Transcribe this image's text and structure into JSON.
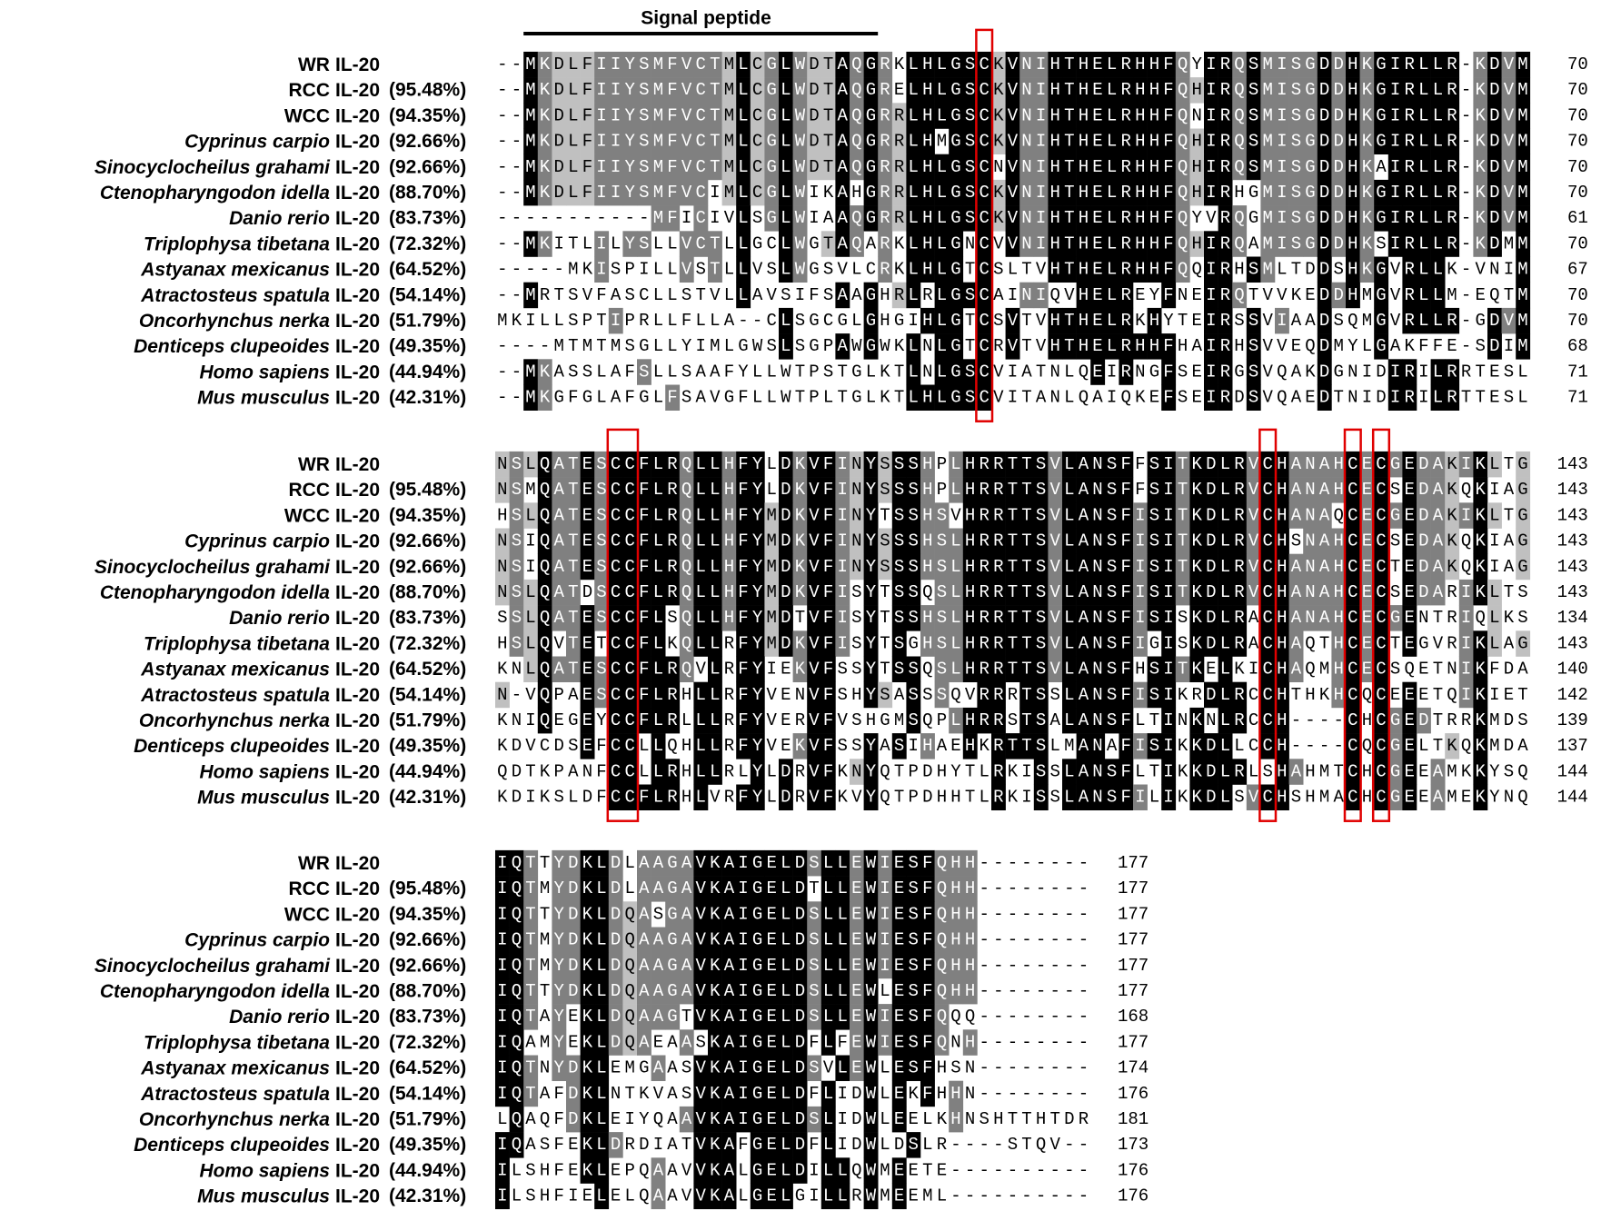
{
  "header": {
    "signal_label": "Signal peptide"
  },
  "shading": {
    "identical": "#000000",
    "high": "#808080",
    "medium": "#c0c0c0"
  },
  "sequences": [
    {
      "name": "WR",
      "italic": false,
      "gene": "IL-20"
    },
    {
      "name": "RCC",
      "italic": false,
      "gene": "IL-20",
      "identity": "(95.48%)"
    },
    {
      "name": "WCC",
      "italic": false,
      "gene": "IL-20",
      "identity": "(94.35%)"
    },
    {
      "name": "Cyprinus carpio",
      "italic": true,
      "gene": "IL-20",
      "identity": "(92.66%)"
    },
    {
      "name": "Sinocyclocheilus grahami",
      "italic": true,
      "gene": "IL-20",
      "identity": "(92.66%)"
    },
    {
      "name": "Ctenopharyngodon idella",
      "italic": true,
      "gene": "IL-20",
      "identity": "(88.70%)"
    },
    {
      "name": "Danio rerio",
      "italic": true,
      "gene": "IL-20",
      "identity": "(83.73%)"
    },
    {
      "name": "Triplophysa tibetana",
      "italic": true,
      "gene": "IL-20",
      "identity": "(72.32%)"
    },
    {
      "name": "Astyanax mexicanus",
      "italic": true,
      "gene": "IL-20",
      "identity": "(64.52%)"
    },
    {
      "name": "Atractosteus spatula",
      "italic": true,
      "gene": "IL-20",
      "identity": "(54.14%)"
    },
    {
      "name": "Oncorhynchus nerka",
      "italic": true,
      "gene": "IL-20",
      "identity": "(51.79%)"
    },
    {
      "name": "Denticeps clupeoides",
      "italic": true,
      "gene": "IL-20",
      "identity": "(49.35%)"
    },
    {
      "name": "Homo sapiens",
      "italic": true,
      "gene": "IL-20",
      "identity": "(44.94%)"
    },
    {
      "name": "Mus musculus",
      "italic": true,
      "gene": "IL-20",
      "identity": "(42.31%)"
    }
  ],
  "blocks": [
    {
      "rows": [
        {
          "seq": "--MKDLFIIYSMFVCTMLCGLWDTAQGRKLHLGSCKVNIHTHELRHHFQYIRQSMISGDDHKGIRLLR-KDVM",
          "end": 70
        },
        {
          "seq": "--MKDLFIIYSMFVCTMLCGLWDTAQGRELHLGSCKVNIHTHELRHHFQHIRQSMISGDDHKGIRLLR-KDVM",
          "end": 70
        },
        {
          "seq": "--MKDLFIIYSMFVCTMLCGLWDTAQGRRLHLGSCKVNIHTHELRHHFQNIRQSMISGDDHKGIRLLR-KDVM",
          "end": 70
        },
        {
          "seq": "--MKDLFIIYSMFVCTMLCGLWDTAQGRRLHMGSCKVNIHTHELRHHFQHIRQSMISGDDHKGIRLLR-KDVM",
          "end": 70
        },
        {
          "seq": "--MKDLFIIYSMFVCTMLCGLWDTAQGRRLHLGSCNVNIHTHELRHHFQHIRQSMISGDDHKAIRLLR-KDVM",
          "end": 70
        },
        {
          "seq": "--MKDLFIIYSMFVCIMLCGLWIKAHGRRLHLGSCKVNIHTHELRHHFQHIRHGMISGDDHKGIRLLR-KDVM",
          "end": 70
        },
        {
          "seq": "-----------MFICIVLSGLWIAAQGRRLHLGSCKVNIHTHELRHHFQYVRQGMISGDDHKGIRLLR-KDVM",
          "end": 61
        },
        {
          "seq": "--MKITLILYSLLVCTLLGCLWGTAQARKLHLGNCVVNIHTHELRHHFQHIRQAMISGDDHKSIRLLR-KDMM",
          "end": 70
        },
        {
          "seq": "-----MKISPILLVSTLLVSLWGSVLCRKLHLGTCSLTVHTHELRHHFQQIRHSMLTDDSHKGVRLLK-VNIM",
          "end": 67
        },
        {
          "seq": "--MRTSVFASCLLSTVLLAVSIFSAAGHRLRLGSCAINIQVHELREYFNEIRQTVVKEDDHMGVRLLM-EQTM",
          "end": 70
        },
        {
          "seq": "MKILLSPTIPRLLFLLA--CLSGCGLGHGIHLGTCSVTVHTHELRKHYTEIRSSVIAADSQMGVRLLR-GDVM",
          "end": 70
        },
        {
          "seq": "----MTMTMSGLLYIMLGWSLSGPAWGWKLNLGTCRVTVHTHELRHHFHAIRHSVVEQDMYLGAKFFE-SDIM",
          "end": 68
        },
        {
          "seq": "--MKASSLAFSLLSAAFYLLWTPSTGLKTLNLGSCVIATNLQEIRNGFSEIRGSVQAKDGNIDIRILRRTESL",
          "end": 71
        },
        {
          "seq": "--MKGFGLAFGLFSAVGFLLWTPLTGLKTLHLGSCVITANLQAIQKEFSEIRDSVQAEDTNIDIRILRTTESL",
          "end": 71
        }
      ]
    },
    {
      "rows": [
        {
          "seq": "NSLQATESCCFLRQLLHFYLDKVFINYSSSHPLHRRTTSVLANSFFSITKDLRVCHANAHCECGEDAKIKLTG",
          "end": 143
        },
        {
          "seq": "NSMQATESCCFLRQLLHFYLDKVFINYSSSHPLHRRTTSVLANSFFSITKDLRVCHANAHCECSEDAKQKIAG",
          "end": 143
        },
        {
          "seq": "HSLQATESCCFLRQLLHFYMDKVFINYTSSHSVHRRTTSVLANSFISITKDLRVCHANAQCECGEDAKIKLTG",
          "end": 143
        },
        {
          "seq": "NSIQATESCCFLRQLLHFYMDKVFINYSSSHSLHRRTTSVLANSFISITKDLRVCHSNAHCECSEDAKQKIAG",
          "end": 143
        },
        {
          "seq": "NSIQATESCCFLRQLLHFYMDKVFINYSSSHSLHRRTTSVLANSFISITKDLRVCHANAHCECTEDAKQKIAG",
          "end": 143
        },
        {
          "seq": "NSLQATDSCCFLRQLLHFYMDKVFISYTSSQSLHRRTTSVLANSFISITKDLRVCHANAHCECSEDARIKLTS",
          "end": 143
        },
        {
          "seq": "SSLQATESCCFLSQLLHFYMDTVFISYTSSHSLHRRTTSVLANSFISISKDLRACHANAHCECGENTRIQLKS",
          "end": 134
        },
        {
          "seq": "HSLQVTETCCFLKQLLRFYMDKVFISYTSGHSLHRRTTSVLANSFIGISKDLRACHAQTHCECTEGVRIKLAG",
          "end": 143
        },
        {
          "seq": "KNLQATESCCFLRQVLRFYIEKVFSSYTSSQSLHRRTTSVLANSFHSITKELKICHAQMHCECSQETNIKFDA",
          "end": 140
        },
        {
          "seq": "N-VQPAESCCFLRHLLRFYVENVFSHYSASSSQVRRRTSSLANSFISIKRDLRCCHTHKHCQCEEETQIKIET",
          "end": 142
        },
        {
          "seq": "KNIQEGEYCCFLRLLLRFYVERVFVSHGMSQPLHRRSTSALANSFLTINKNLRCCH----CHCGEDTRRKMDS",
          "end": 139
        },
        {
          "seq": "KDVCDSEFCCLLQHLLRFYVEKVFSSYASIHAEHKRTTSLMANAFISIKKDLLCCH----CQCGELTKQKMDA",
          "end": 137
        },
        {
          "seq": "QDTKPANFCCLLRHLLRLYLDRVFKNYQTPDHYTLRKISSLANSFLTIKKDLRLSHAHMTCHCGEEAMKKYSQ",
          "end": 144
        },
        {
          "seq": "KDIKSLDFCCFLRHLVRFYLDRVFKVYQTPDHHTLRKISSLANSFILIKKDLSVCHSHMACHCGEEAMEKYNQ",
          "end": 144
        }
      ]
    },
    {
      "rows": [
        {
          "seq": "IQTTYDKLDLAAGAVKAIGELDSLLEWIESFQHH--------",
          "end": 177
        },
        {
          "seq": "IQTMYDKLDLAAGAVKAIGELDTLLEWIESFQHH--------",
          "end": 177
        },
        {
          "seq": "IQTTYDKLDQASGAVKAIGELDSLLEWIESFQHH--------",
          "end": 177
        },
        {
          "seq": "IQTMYDKLDQAAGAVKAIGELDSLLEWIESFQHH--------",
          "end": 177
        },
        {
          "seq": "IQTMYDKLDQAAGAVKAIGELDSLLEWIESFQHH--------",
          "end": 177
        },
        {
          "seq": "IQTTYDKLDQAAGAVKAIGELDSLLEWLESFQHH--------",
          "end": 177
        },
        {
          "seq": "IQTAYEKLDQAAGTVKAIGELDSLLEWIESFQQQ--------",
          "end": 168
        },
        {
          "seq": "IQAMYEKLDQAEAASKAIGELDFLFEWIESFQNH--------",
          "end": 177
        },
        {
          "seq": "IQTNYDKLEMGAASVKAIGELDSVLEWLESFHSN--------",
          "end": 174
        },
        {
          "seq": "IQTAFDKLNTKVASVKAIGELDFLIDWLEKFHHN--------",
          "end": 176
        },
        {
          "seq": "LQAQFDKLEIYQAAVKAIGELDSLIDWLEELKHNSHTTHTDR",
          "end": 181
        },
        {
          "seq": "IQASFEKLDRDIATVKAFGELDFLIDWLDSLR----STQV--",
          "end": 173
        },
        {
          "seq": "ILSHFEKLEPQAAVVKALGELDILLQWMEETE----------",
          "end": 176
        },
        {
          "seq": "ILSHFIELELQAAVVKALGELGILLRWMEEML----------",
          "end": 176
        }
      ]
    }
  ]
}
